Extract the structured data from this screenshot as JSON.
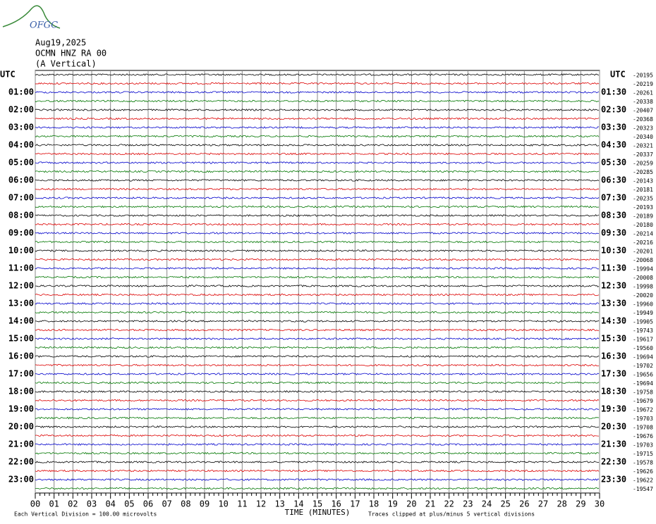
{
  "header": {
    "logo": "OFGC",
    "date": "Aug19,2025",
    "station": "OCMN HNZ RA 00",
    "component": "(A Vertical)"
  },
  "utc_left": "UTC",
  "utc_right": "UTC",
  "left_labels": [
    "01:00",
    "02:00",
    "03:00",
    "04:00",
    "05:00",
    "06:00",
    "07:00",
    "08:00",
    "09:00",
    "10:00",
    "11:00",
    "12:00",
    "13:00",
    "14:00",
    "15:00",
    "16:00",
    "17:00",
    "18:00",
    "19:00",
    "20:00",
    "21:00",
    "22:00",
    "23:00"
  ],
  "right_labels": [
    "01:30",
    "02:30",
    "03:30",
    "04:30",
    "05:30",
    "06:30",
    "07:30",
    "08:30",
    "09:30",
    "10:30",
    "11:30",
    "12:30",
    "13:30",
    "14:30",
    "15:30",
    "16:30",
    "17:30",
    "18:30",
    "19:30",
    "20:30",
    "21:30",
    "22:30",
    "23:30"
  ],
  "offsets": [
    "-20195",
    "-20219",
    "-20261",
    "-20338",
    "-20407",
    "-20368",
    "-20323",
    "-20340",
    "-20321",
    "-20337",
    "-20259",
    "-20285",
    "-20143",
    "-20181",
    "-20235",
    "-20193",
    "-20189",
    "-20180",
    "-20214",
    "-20216",
    "-20201",
    "-20068",
    "-19994",
    "-20008",
    "-19998",
    "-20020",
    "-19960",
    "-19949",
    "-19905",
    "-19743",
    "-19617",
    "-19560",
    "-19694",
    "-19702",
    "-19656",
    "-19694",
    "-19758",
    "-19679",
    "-19672",
    "-19703",
    "-19708",
    "-19676",
    "-19703",
    "-19715",
    "-19578",
    "-19626",
    "-19622",
    "-19547"
  ],
  "x_axis": {
    "ticks": [
      "00",
      "01",
      "02",
      "03",
      "04",
      "05",
      "06",
      "07",
      "08",
      "09",
      "10",
      "11",
      "12",
      "13",
      "14",
      "15",
      "16",
      "17",
      "18",
      "19",
      "20",
      "21",
      "22",
      "23",
      "24",
      "25",
      "26",
      "27",
      "28",
      "29",
      "30"
    ],
    "title": "TIME (MINUTES)"
  },
  "footer": {
    "scale_note": "Each Vertical Division =  100.00 microvolts",
    "clip_note": "Traces clipped at plus/minus 5 vertical divisions"
  }
}
